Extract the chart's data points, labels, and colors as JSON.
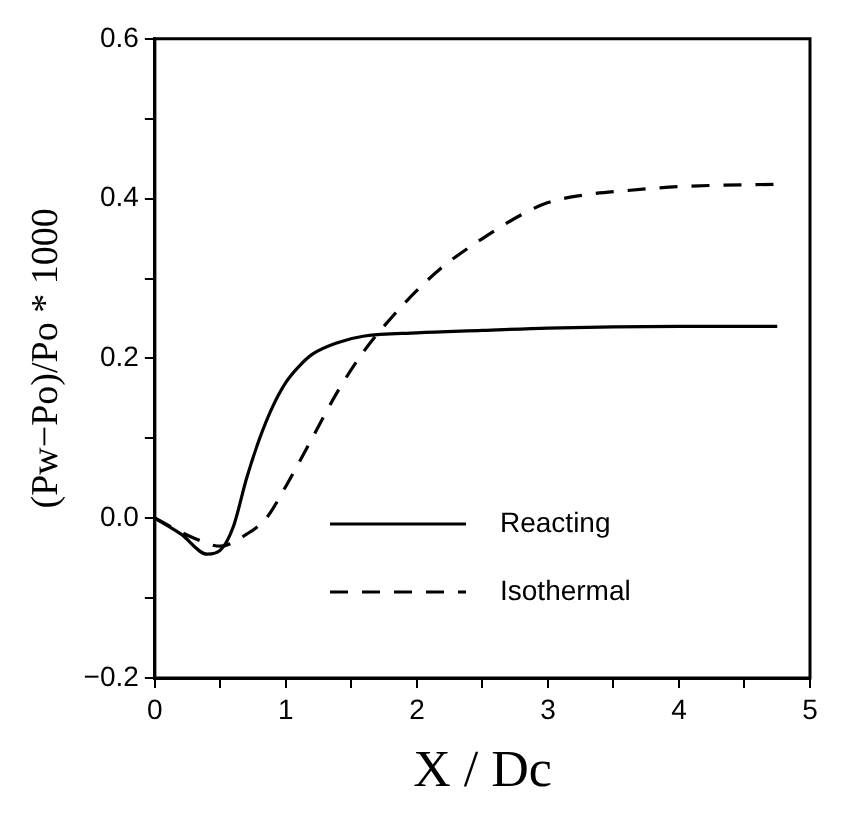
{
  "chart_data": {
    "type": "line",
    "xlabel": "X / Dc",
    "ylabel": "(Pw−Po)/Po * 1000",
    "xlim": [
      0,
      5
    ],
    "ylim": [
      -0.2,
      0.6
    ],
    "xticks": [
      0,
      {
        "value": 0.5,
        "label": null
      },
      1,
      {
        "value": 1.5,
        "label": null
      },
      2,
      {
        "value": 2.5,
        "label": null
      },
      3,
      {
        "value": 3.5,
        "label": null
      },
      4,
      {
        "value": 4.5,
        "label": null
      },
      5
    ],
    "yticks": [
      -0.2,
      {
        "value": -0.1,
        "label": null
      },
      {
        "value": 0,
        "label": "0.0"
      },
      {
        "value": 0.1,
        "label": null
      },
      0.2,
      {
        "value": 0.3,
        "label": null
      },
      0.4,
      {
        "value": 0.5,
        "label": null
      },
      0.6
    ],
    "grid": false,
    "legend": "bottom right",
    "marker": "none",
    "series": [
      {
        "name": "Reacting",
        "color": "#000000",
        "line_style": "solid",
        "x": [
          0,
          0.2,
          0.4,
          0.5,
          0.6,
          0.7,
          0.8,
          0.9,
          1.0,
          1.1,
          1.2,
          1.4,
          1.6,
          2.0,
          2.5,
          3.0,
          4.0,
          4.75
        ],
        "values": [
          0,
          -0.02,
          -0.045,
          -0.04,
          -0.01,
          0.05,
          0.1,
          0.14,
          0.17,
          0.19,
          0.205,
          0.22,
          0.228,
          0.232,
          0.235,
          0.238,
          0.24,
          0.24
        ]
      },
      {
        "name": "Isothermal",
        "color": "#000000",
        "line_style": "dashed",
        "x": [
          0,
          0.3,
          0.5,
          0.7,
          0.85,
          1.0,
          1.2,
          1.4,
          1.6,
          1.8,
          2.0,
          2.2,
          2.5,
          2.8,
          3.0,
          3.3,
          3.6,
          4.0,
          4.75
        ],
        "values": [
          0,
          -0.025,
          -0.035,
          -0.02,
          0.0,
          0.04,
          0.1,
          0.16,
          0.21,
          0.25,
          0.285,
          0.315,
          0.35,
          0.38,
          0.395,
          0.405,
          0.41,
          0.415,
          0.418
        ]
      }
    ]
  }
}
